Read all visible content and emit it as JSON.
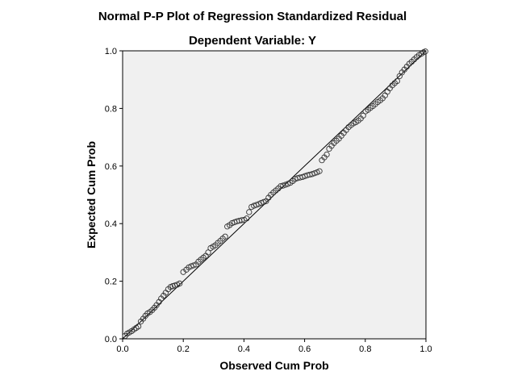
{
  "chart_data": {
    "type": "scatter",
    "title": "Normal P-P Plot of Regression Standardized Residual",
    "subtitle": "Dependent Variable: Y",
    "xlabel": "Observed Cum Prob",
    "ylabel": "Expected Cum Prob",
    "xlim": [
      0,
      1
    ],
    "ylim": [
      0,
      1
    ],
    "xticks": [
      "0.0",
      "0.2",
      "0.4",
      "0.6",
      "0.8",
      "1.0"
    ],
    "yticks": [
      "0.0",
      "0.2",
      "0.4",
      "0.6",
      "0.8",
      "1.0"
    ],
    "grid": false,
    "background_color": "#f0f0f0",
    "marker": "hollow circle",
    "reference_line": {
      "from": [
        0,
        0
      ],
      "to": [
        1,
        1
      ]
    },
    "series": [
      {
        "points": [
          [
            0.008,
            0.01
          ],
          [
            0.015,
            0.018
          ],
          [
            0.022,
            0.022
          ],
          [
            0.03,
            0.027
          ],
          [
            0.038,
            0.033
          ],
          [
            0.045,
            0.038
          ],
          [
            0.052,
            0.043
          ],
          [
            0.06,
            0.06
          ],
          [
            0.068,
            0.07
          ],
          [
            0.075,
            0.08
          ],
          [
            0.082,
            0.088
          ],
          [
            0.09,
            0.093
          ],
          [
            0.098,
            0.1
          ],
          [
            0.105,
            0.108
          ],
          [
            0.112,
            0.117
          ],
          [
            0.12,
            0.128
          ],
          [
            0.127,
            0.14
          ],
          [
            0.135,
            0.15
          ],
          [
            0.142,
            0.16
          ],
          [
            0.15,
            0.172
          ],
          [
            0.158,
            0.18
          ],
          [
            0.165,
            0.183
          ],
          [
            0.172,
            0.185
          ],
          [
            0.18,
            0.188
          ],
          [
            0.188,
            0.192
          ],
          [
            0.2,
            0.232
          ],
          [
            0.21,
            0.24
          ],
          [
            0.218,
            0.248
          ],
          [
            0.226,
            0.252
          ],
          [
            0.234,
            0.255
          ],
          [
            0.242,
            0.258
          ],
          [
            0.25,
            0.268
          ],
          [
            0.258,
            0.275
          ],
          [
            0.266,
            0.282
          ],
          [
            0.274,
            0.288
          ],
          [
            0.282,
            0.3
          ],
          [
            0.29,
            0.315
          ],
          [
            0.298,
            0.32
          ],
          [
            0.306,
            0.325
          ],
          [
            0.314,
            0.333
          ],
          [
            0.322,
            0.34
          ],
          [
            0.33,
            0.348
          ],
          [
            0.338,
            0.355
          ],
          [
            0.345,
            0.39
          ],
          [
            0.353,
            0.395
          ],
          [
            0.361,
            0.402
          ],
          [
            0.369,
            0.405
          ],
          [
            0.377,
            0.408
          ],
          [
            0.385,
            0.41
          ],
          [
            0.393,
            0.412
          ],
          [
            0.401,
            0.413
          ],
          [
            0.409,
            0.418
          ],
          [
            0.417,
            0.44
          ],
          [
            0.425,
            0.458
          ],
          [
            0.433,
            0.462
          ],
          [
            0.441,
            0.465
          ],
          [
            0.449,
            0.468
          ],
          [
            0.457,
            0.472
          ],
          [
            0.465,
            0.475
          ],
          [
            0.473,
            0.478
          ],
          [
            0.481,
            0.49
          ],
          [
            0.489,
            0.5
          ],
          [
            0.497,
            0.508
          ],
          [
            0.505,
            0.515
          ],
          [
            0.513,
            0.522
          ],
          [
            0.521,
            0.53
          ],
          [
            0.529,
            0.532
          ],
          [
            0.537,
            0.535
          ],
          [
            0.545,
            0.538
          ],
          [
            0.553,
            0.542
          ],
          [
            0.561,
            0.548
          ],
          [
            0.569,
            0.555
          ],
          [
            0.577,
            0.558
          ],
          [
            0.585,
            0.56
          ],
          [
            0.593,
            0.562
          ],
          [
            0.601,
            0.565
          ],
          [
            0.609,
            0.568
          ],
          [
            0.617,
            0.57
          ],
          [
            0.625,
            0.572
          ],
          [
            0.633,
            0.575
          ],
          [
            0.641,
            0.578
          ],
          [
            0.649,
            0.582
          ],
          [
            0.657,
            0.62
          ],
          [
            0.665,
            0.63
          ],
          [
            0.673,
            0.64
          ],
          [
            0.681,
            0.66
          ],
          [
            0.689,
            0.67
          ],
          [
            0.697,
            0.68
          ],
          [
            0.705,
            0.688
          ],
          [
            0.713,
            0.695
          ],
          [
            0.721,
            0.705
          ],
          [
            0.729,
            0.715
          ],
          [
            0.737,
            0.725
          ],
          [
            0.745,
            0.735
          ],
          [
            0.753,
            0.742
          ],
          [
            0.761,
            0.748
          ],
          [
            0.769,
            0.752
          ],
          [
            0.777,
            0.758
          ],
          [
            0.785,
            0.765
          ],
          [
            0.793,
            0.775
          ],
          [
            0.801,
            0.79
          ],
          [
            0.809,
            0.795
          ],
          [
            0.817,
            0.802
          ],
          [
            0.825,
            0.808
          ],
          [
            0.833,
            0.815
          ],
          [
            0.841,
            0.822
          ],
          [
            0.849,
            0.828
          ],
          [
            0.857,
            0.835
          ],
          [
            0.865,
            0.845
          ],
          [
            0.873,
            0.858
          ],
          [
            0.881,
            0.87
          ],
          [
            0.889,
            0.88
          ],
          [
            0.897,
            0.888
          ],
          [
            0.905,
            0.895
          ],
          [
            0.913,
            0.912
          ],
          [
            0.921,
            0.925
          ],
          [
            0.929,
            0.935
          ],
          [
            0.937,
            0.945
          ],
          [
            0.945,
            0.955
          ],
          [
            0.953,
            0.962
          ],
          [
            0.961,
            0.97
          ],
          [
            0.969,
            0.978
          ],
          [
            0.977,
            0.985
          ],
          [
            0.985,
            0.99
          ],
          [
            0.992,
            0.995
          ],
          [
            0.998,
            0.998
          ]
        ]
      }
    ]
  }
}
